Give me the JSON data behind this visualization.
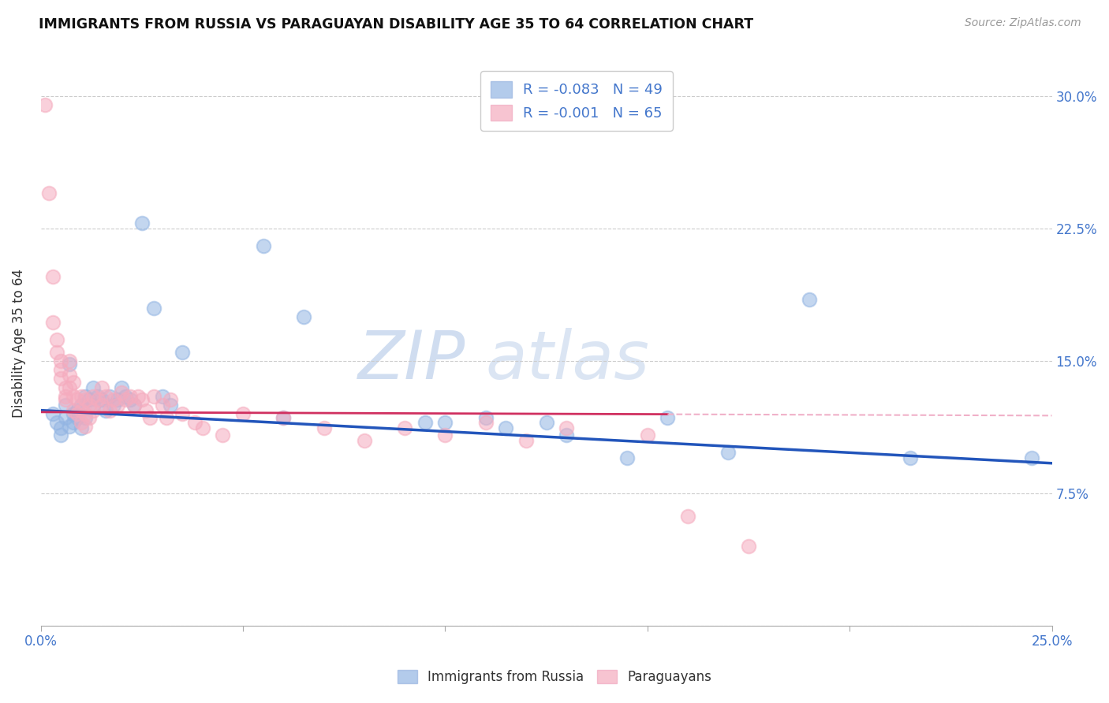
{
  "title": "IMMIGRANTS FROM RUSSIA VS PARAGUAYAN DISABILITY AGE 35 TO 64 CORRELATION CHART",
  "source": "Source: ZipAtlas.com",
  "ylabel": "Disability Age 35 to 64",
  "xlim": [
    0.0,
    0.25
  ],
  "ylim": [
    0.0,
    0.32
  ],
  "xticks": [
    0.0,
    0.05,
    0.1,
    0.15,
    0.2,
    0.25
  ],
  "yticks": [
    0.0,
    0.075,
    0.15,
    0.225,
    0.3
  ],
  "xtick_labels": [
    "0.0%",
    "",
    "",
    "",
    "",
    "25.0%"
  ],
  "ytick_labels": [
    "",
    "7.5%",
    "15.0%",
    "22.5%",
    "30.0%"
  ],
  "legend_line1": "R = -0.083   N = 49",
  "legend_line2": "R = -0.001   N = 65",
  "legend_label_blue": "Immigrants from Russia",
  "legend_label_pink": "Paraguayans",
  "blue_color": "#93b5e3",
  "pink_color": "#f5abbe",
  "trend_blue_color": "#2255bb",
  "trend_pink_solid_color": "#d03060",
  "trend_pink_dash_color": "#f0b0c8",
  "watermark_text": "ZIPatlas",
  "watermark_color": "#dde8f5",
  "blue_pts": [
    [
      0.003,
      0.12
    ],
    [
      0.004,
      0.115
    ],
    [
      0.005,
      0.112
    ],
    [
      0.005,
      0.108
    ],
    [
      0.006,
      0.118
    ],
    [
      0.006,
      0.125
    ],
    [
      0.007,
      0.113
    ],
    [
      0.007,
      0.148
    ],
    [
      0.008,
      0.12
    ],
    [
      0.008,
      0.115
    ],
    [
      0.009,
      0.122
    ],
    [
      0.009,
      0.118
    ],
    [
      0.01,
      0.125
    ],
    [
      0.01,
      0.112
    ],
    [
      0.011,
      0.118
    ],
    [
      0.011,
      0.13
    ],
    [
      0.012,
      0.128
    ],
    [
      0.013,
      0.135
    ],
    [
      0.013,
      0.125
    ],
    [
      0.014,
      0.13
    ],
    [
      0.015,
      0.128
    ],
    [
      0.016,
      0.122
    ],
    [
      0.017,
      0.13
    ],
    [
      0.018,
      0.125
    ],
    [
      0.019,
      0.128
    ],
    [
      0.02,
      0.135
    ],
    [
      0.021,
      0.13
    ],
    [
      0.022,
      0.128
    ],
    [
      0.023,
      0.125
    ],
    [
      0.025,
      0.228
    ],
    [
      0.028,
      0.18
    ],
    [
      0.03,
      0.13
    ],
    [
      0.032,
      0.125
    ],
    [
      0.035,
      0.155
    ],
    [
      0.055,
      0.215
    ],
    [
      0.06,
      0.118
    ],
    [
      0.065,
      0.175
    ],
    [
      0.095,
      0.115
    ],
    [
      0.1,
      0.115
    ],
    [
      0.11,
      0.118
    ],
    [
      0.115,
      0.112
    ],
    [
      0.125,
      0.115
    ],
    [
      0.13,
      0.108
    ],
    [
      0.145,
      0.095
    ],
    [
      0.155,
      0.118
    ],
    [
      0.17,
      0.098
    ],
    [
      0.19,
      0.185
    ],
    [
      0.215,
      0.095
    ],
    [
      0.245,
      0.095
    ]
  ],
  "pink_pts": [
    [
      0.001,
      0.295
    ],
    [
      0.002,
      0.245
    ],
    [
      0.003,
      0.198
    ],
    [
      0.003,
      0.172
    ],
    [
      0.004,
      0.162
    ],
    [
      0.004,
      0.155
    ],
    [
      0.005,
      0.15
    ],
    [
      0.005,
      0.145
    ],
    [
      0.005,
      0.14
    ],
    [
      0.006,
      0.135
    ],
    [
      0.006,
      0.13
    ],
    [
      0.006,
      0.128
    ],
    [
      0.007,
      0.15
    ],
    [
      0.007,
      0.142
    ],
    [
      0.007,
      0.135
    ],
    [
      0.008,
      0.138
    ],
    [
      0.008,
      0.13
    ],
    [
      0.008,
      0.122
    ],
    [
      0.009,
      0.128
    ],
    [
      0.009,
      0.12
    ],
    [
      0.01,
      0.13
    ],
    [
      0.01,
      0.122
    ],
    [
      0.01,
      0.115
    ],
    [
      0.011,
      0.128
    ],
    [
      0.011,
      0.12
    ],
    [
      0.011,
      0.113
    ],
    [
      0.012,
      0.125
    ],
    [
      0.012,
      0.118
    ],
    [
      0.013,
      0.13
    ],
    [
      0.013,
      0.122
    ],
    [
      0.014,
      0.128
    ],
    [
      0.015,
      0.135
    ],
    [
      0.015,
      0.125
    ],
    [
      0.016,
      0.13
    ],
    [
      0.017,
      0.122
    ],
    [
      0.018,
      0.128
    ],
    [
      0.019,
      0.125
    ],
    [
      0.02,
      0.132
    ],
    [
      0.021,
      0.128
    ],
    [
      0.022,
      0.13
    ],
    [
      0.023,
      0.125
    ],
    [
      0.024,
      0.13
    ],
    [
      0.025,
      0.128
    ],
    [
      0.026,
      0.122
    ],
    [
      0.027,
      0.118
    ],
    [
      0.028,
      0.13
    ],
    [
      0.03,
      0.125
    ],
    [
      0.031,
      0.118
    ],
    [
      0.032,
      0.128
    ],
    [
      0.035,
      0.12
    ],
    [
      0.038,
      0.115
    ],
    [
      0.04,
      0.112
    ],
    [
      0.045,
      0.108
    ],
    [
      0.05,
      0.12
    ],
    [
      0.06,
      0.118
    ],
    [
      0.07,
      0.112
    ],
    [
      0.08,
      0.105
    ],
    [
      0.09,
      0.112
    ],
    [
      0.1,
      0.108
    ],
    [
      0.11,
      0.115
    ],
    [
      0.12,
      0.105
    ],
    [
      0.13,
      0.112
    ],
    [
      0.15,
      0.108
    ],
    [
      0.16,
      0.062
    ],
    [
      0.175,
      0.045
    ]
  ]
}
